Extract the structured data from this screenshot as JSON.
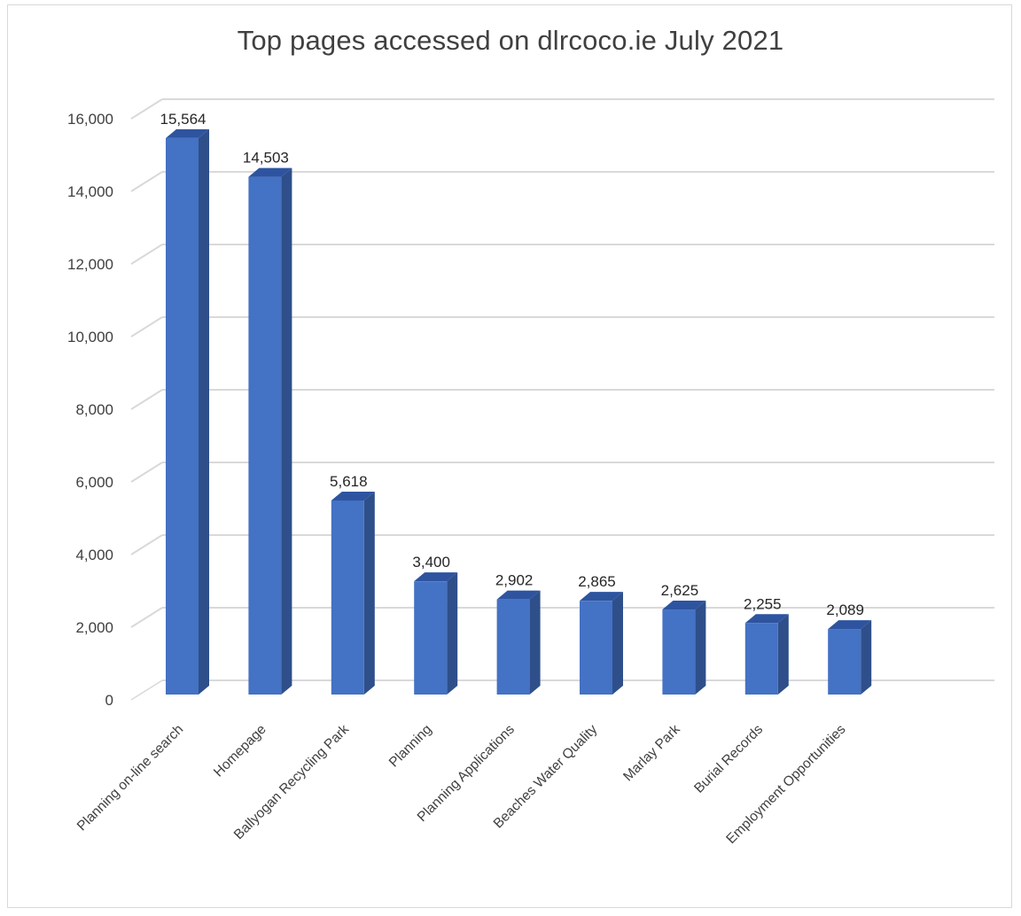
{
  "chart_data": {
    "type": "bar",
    "title": "Top pages accessed on dlrcoco.ie July 2021",
    "xlabel": "",
    "ylabel": "",
    "categories": [
      "Planning on-line search",
      "Homepage",
      "Ballyogan Recycling Park",
      "Planning",
      "Planning Applications",
      "Beaches Water Quality",
      "Marlay Park",
      "Burial Records",
      "Employment Opportunities"
    ],
    "values": [
      15564,
      14503,
      5618,
      3400,
      2902,
      2865,
      2625,
      2255,
      2089
    ],
    "value_labels": [
      "15,564",
      "14,503",
      "5,618",
      "3,400",
      "2,902",
      "2,865",
      "2,625",
      "2,255",
      "2,089"
    ],
    "ylim": [
      0,
      16000
    ],
    "yticks": [
      0,
      2000,
      4000,
      6000,
      8000,
      10000,
      12000,
      14000,
      16000
    ],
    "ytick_labels": [
      "0",
      "2,000",
      "4,000",
      "6,000",
      "8,000",
      "10,000",
      "12,000",
      "14,000",
      "16,000"
    ],
    "grid": true,
    "legend": "none",
    "style": "3d-column",
    "colors": {
      "bar_front": "#4472c4",
      "bar_side": "#2f4f8a",
      "bar_top": "#2e54a0",
      "grid": "#d9d9d9",
      "text": "#404040"
    }
  }
}
